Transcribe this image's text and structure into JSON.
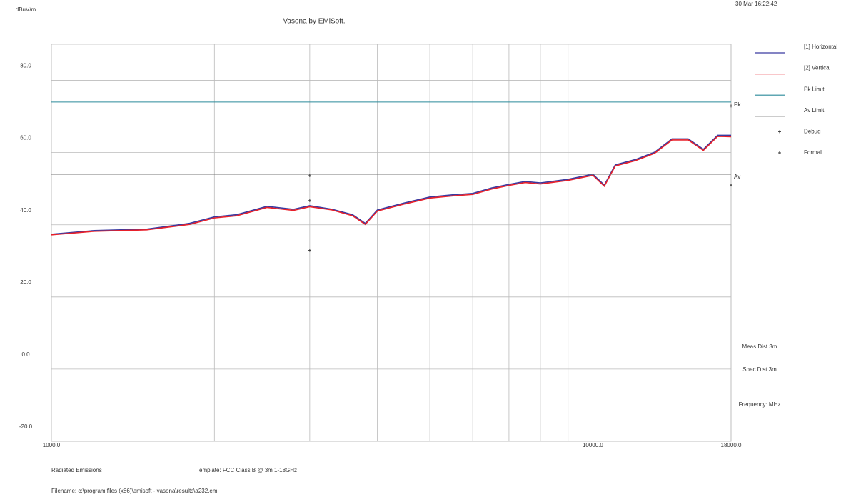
{
  "chart_data": {
    "type": "line",
    "title": "Vasona by EMiSoft.",
    "y_label": "dBuV/m",
    "timestamp": "30 Mar 16:22:42",
    "x_log": true,
    "xlim": [
      1000,
      18000
    ],
    "ylim": [
      -20,
      90
    ],
    "grid": true,
    "xticks": [
      {
        "value": 1000,
        "label": "1000.0"
      },
      {
        "value": 2000,
        "label": null
      },
      {
        "value": 3000,
        "label": null
      },
      {
        "value": 4000,
        "label": null
      },
      {
        "value": 5000,
        "label": null
      },
      {
        "value": 6000,
        "label": null
      },
      {
        "value": 7000,
        "label": null
      },
      {
        "value": 8000,
        "label": null
      },
      {
        "value": 9000,
        "label": null
      },
      {
        "value": 10000,
        "label": "10000.0"
      },
      {
        "value": 18000,
        "label": "18000.0"
      }
    ],
    "yticks": [
      {
        "value": 80,
        "label": "80.0"
      },
      {
        "value": 60,
        "label": "60.0"
      },
      {
        "value": 40,
        "label": "40.0"
      },
      {
        "value": 20,
        "label": "20.0"
      },
      {
        "value": 0,
        "label": "0.0"
      },
      {
        "value": -20,
        "label": "-20.0"
      }
    ],
    "series": [
      {
        "name": "[1] Horizontal",
        "color": "#3a3aa0",
        "kind": "line",
        "x": [
          1000,
          1200,
          1500,
          1800,
          2000,
          2200,
          2500,
          2800,
          3000,
          3300,
          3600,
          3800,
          4000,
          4500,
          5000,
          5500,
          6000,
          6500,
          7000,
          7500,
          8000,
          9000,
          10000,
          10500,
          11000,
          12000,
          13000,
          14000,
          15000,
          16000,
          17000,
          18000
        ],
        "values": [
          37.4,
          38.4,
          38.8,
          40.4,
          42.2,
          42.8,
          45.1,
          44.3,
          45.3,
          44.3,
          42.8,
          40.4,
          44.1,
          46.1,
          47.7,
          48.3,
          48.7,
          50.2,
          51.2,
          52.0,
          51.6,
          52.6,
          54.0,
          51.0,
          56.6,
          58.1,
          60.1,
          63.8,
          63.8,
          60.9,
          64.8,
          64.8
        ]
      },
      {
        "name": "[2] Vertical",
        "color": "#e8202a",
        "kind": "line",
        "x": [
          1000,
          1200,
          1500,
          1800,
          2000,
          2200,
          2500,
          2800,
          3000,
          3300,
          3600,
          3800,
          4000,
          4500,
          5000,
          5500,
          6000,
          6500,
          7000,
          7500,
          8000,
          9000,
          10000,
          10500,
          11000,
          12000,
          13000,
          14000,
          15000,
          16000,
          17000,
          18000
        ],
        "values": [
          37.2,
          38.2,
          38.6,
          40.1,
          41.9,
          42.5,
          44.8,
          44.0,
          45.0,
          44.1,
          42.5,
          40.1,
          43.8,
          45.8,
          47.4,
          48.0,
          48.4,
          49.9,
          50.9,
          51.7,
          51.3,
          52.3,
          53.7,
          50.7,
          56.3,
          57.8,
          59.8,
          63.5,
          63.5,
          60.6,
          64.5,
          64.4
        ]
      },
      {
        "name": "Pk Limit",
        "color": "#2a8a9a",
        "kind": "line",
        "end_label": "Pk",
        "x": [
          1000,
          18000
        ],
        "values": [
          74,
          74
        ]
      },
      {
        "name": "Av Limit",
        "color": "#777777",
        "kind": "line",
        "end_label": "Av",
        "x": [
          1000,
          18000
        ],
        "values": [
          54,
          54
        ]
      },
      {
        "name": "Debug",
        "color": "#333333",
        "kind": "plus",
        "x": [
          3000,
          3000,
          3000
        ],
        "values": [
          53.6,
          46.7,
          32.9
        ]
      },
      {
        "name": "Formal",
        "color": "#333333",
        "kind": "plus",
        "x": [
          18000,
          18000
        ],
        "values": [
          72.9,
          51.0
        ]
      }
    ],
    "notes": [
      "Meas Dist 3m",
      "Spec Dist 3m",
      "Frequency: MHz"
    ],
    "footer": [
      "Radiated Emissions",
      "Template: FCC Class B @ 3m 1-18GHz",
      "Filename: c:\\program files (x86)\\emisoft - vasona\\results\\a232.emi"
    ]
  }
}
